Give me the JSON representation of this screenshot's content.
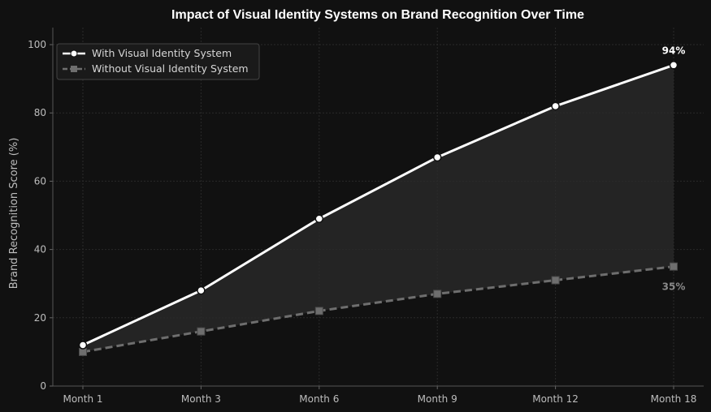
{
  "chart_data": {
    "type": "line",
    "title": "Impact of Visual Identity Systems on Brand Recognition Over Time",
    "xlabel": "",
    "ylabel": "Brand Recognition Score (%)",
    "categories": [
      "Month 1",
      "Month 3",
      "Month 6",
      "Month 9",
      "Month 12",
      "Month 18"
    ],
    "ylim": [
      0,
      105
    ],
    "yticks": [
      0,
      20,
      40,
      60,
      80,
      100
    ],
    "grid": true,
    "legend_position": "top-left",
    "series": [
      {
        "name": "With Visual Identity System",
        "values": [
          12,
          28,
          49,
          67,
          82,
          94
        ],
        "color": "#ffffff",
        "style": "solid",
        "marker": "circle",
        "end_label": "94%"
      },
      {
        "name": "Without Visual Identity System",
        "values": [
          10,
          16,
          22,
          27,
          31,
          35
        ],
        "color": "#6e6e6e",
        "style": "dashed",
        "marker": "square",
        "end_label": "35%"
      }
    ],
    "fill_between": true,
    "colors": {
      "background": "#111111",
      "grid": "#2a2a2a",
      "fill": "#2b2b2b"
    }
  }
}
